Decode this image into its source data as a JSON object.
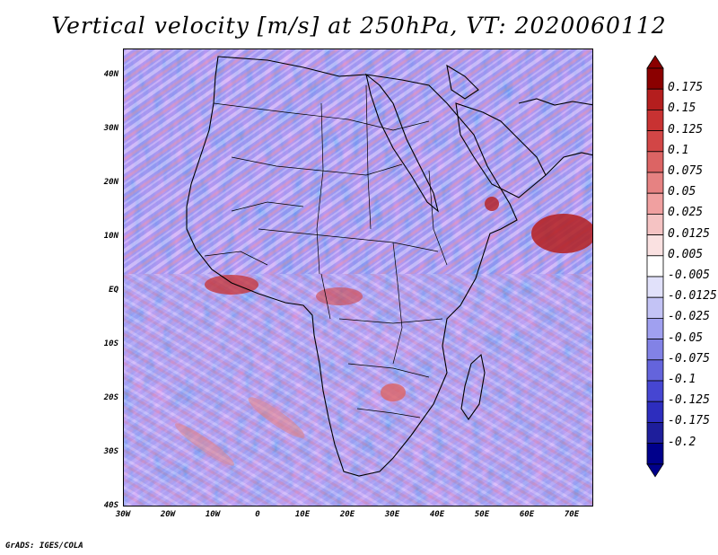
{
  "title": "Vertical velocity [m/s] at 250hPa, VT: 2020060112",
  "lat_labels": [
    "40N",
    "30N",
    "20N",
    "10N",
    "EQ",
    "10S",
    "20S",
    "30S",
    "40S"
  ],
  "lon_labels": [
    "30W",
    "20W",
    "10W",
    "0",
    "10E",
    "20E",
    "30E",
    "40E",
    "50E",
    "60E",
    "70E"
  ],
  "colorbar": {
    "labels": [
      "0.175",
      "0.15",
      "0.125",
      "0.1",
      "0.075",
      "0.05",
      "0.025",
      "0.0125",
      "0.005",
      "-0.005",
      "-0.0125",
      "-0.025",
      "-0.05",
      "-0.075",
      "-0.1",
      "-0.125",
      "-0.175",
      "-0.2"
    ],
    "colors": [
      "#8b0000",
      "#b41e1e",
      "#c83232",
      "#d24646",
      "#dc6464",
      "#e68282",
      "#f0a0a0",
      "#f5c3c3",
      "#fae1e1",
      "#ffffff",
      "#e1e1fa",
      "#c3c3f5",
      "#a0a0f0",
      "#8282e6",
      "#6464dc",
      "#4646d2",
      "#2d2dbe",
      "#1e1e9b",
      "#00008b"
    ]
  },
  "footer": "GrADS: IGES/COLA"
}
